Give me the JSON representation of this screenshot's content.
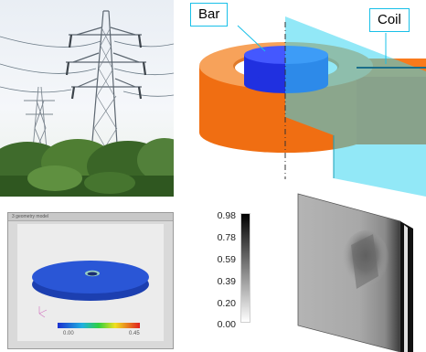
{
  "model": {
    "bar_label": "Bar",
    "coil_label": "Coil"
  },
  "simulation": {
    "window_title": "3 geometry model",
    "legend_min": "0.00",
    "legend_max": "0.45"
  },
  "scale": {
    "ticks": [
      "0.98",
      "0.78",
      "0.59",
      "0.39",
      "0.20",
      "0.00"
    ],
    "gradient_top": "#000000",
    "gradient_bottom": "#ffffff"
  },
  "colors": {
    "ring": "#f97a1c",
    "bar": "#1e2fe6",
    "plane": "#39d6f0",
    "callout_border": "#19c0e8",
    "disk": "#2048c8"
  }
}
